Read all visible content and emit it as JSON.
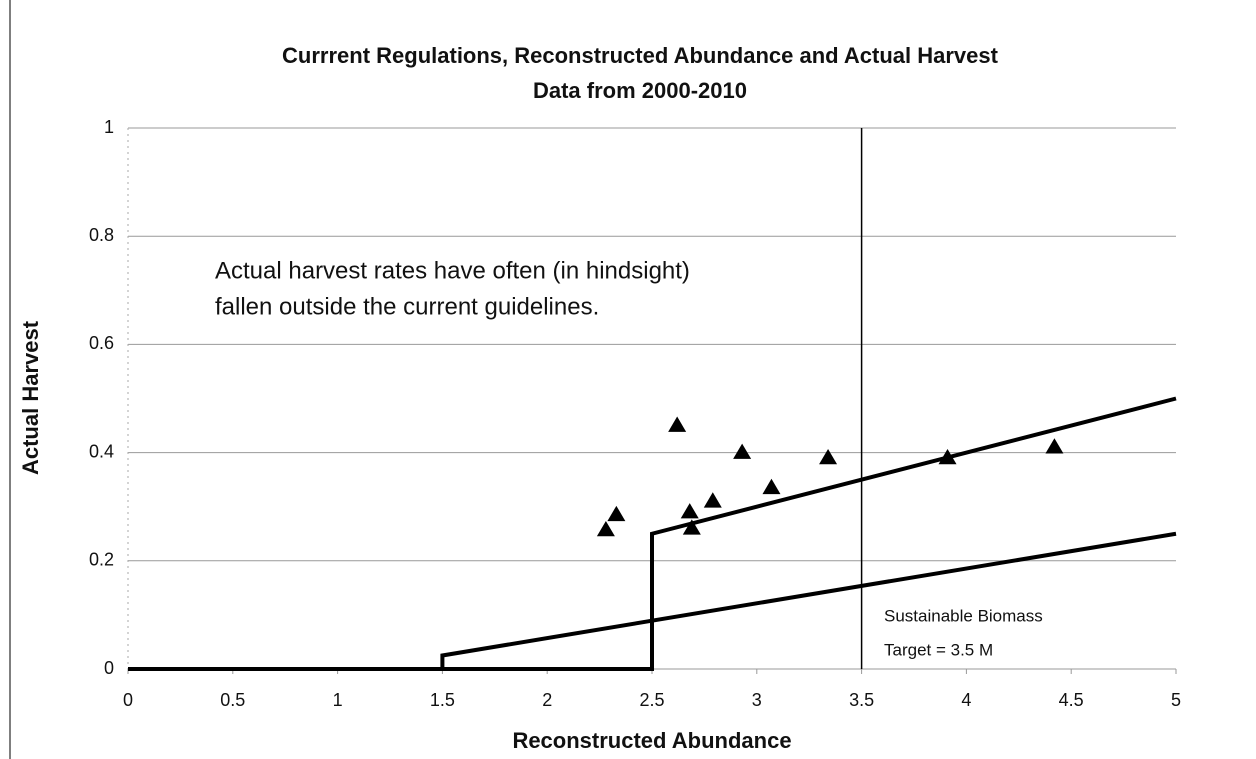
{
  "chart_data": {
    "type": "scatter",
    "title": "Currrent Regulations, Reconstructed Abundance and Actual Harvest",
    "subtitle": "Data from 2000-2010",
    "xlabel": "Reconstructed Abundance",
    "ylabel": "Actual Harvest",
    "xlim": [
      0,
      5
    ],
    "ylim": [
      0,
      1
    ],
    "xticks": [
      0,
      0.5,
      1,
      1.5,
      2,
      2.5,
      3,
      3.5,
      4,
      4.5,
      5
    ],
    "yticks": [
      0,
      0.2,
      0.4,
      0.6,
      0.8,
      1
    ],
    "grid": true,
    "series": [
      {
        "color": "#000000",
        "marker": "triangle",
        "x": [
          2.28,
          2.33,
          2.62,
          2.68,
          2.69,
          2.79,
          2.93,
          3.07,
          3.34,
          3.91,
          4.42
        ],
        "values": [
          0.257,
          0.285,
          0.45,
          0.29,
          0.26,
          0.31,
          0.4,
          0.335,
          0.39,
          0.39,
          0.41
        ]
      }
    ],
    "lines": [
      {
        "color": "#000000",
        "x": [
          0,
          2.5,
          2.5,
          5
        ],
        "values": [
          0,
          0,
          0.25,
          0.5
        ]
      },
      {
        "color": "#000000",
        "x": [
          0,
          1.5,
          1.5,
          5
        ],
        "values": [
          0,
          0,
          0.025,
          0.25
        ]
      }
    ],
    "vline": 3.5,
    "annotations": [
      {
        "lines": [
          "Actual harvest rates have often (in hindsight)",
          "fallen outside the current  guidelines."
        ]
      },
      {
        "lines": [
          "Sustainable Biomass",
          "Target = 3.5 M"
        ]
      }
    ]
  }
}
